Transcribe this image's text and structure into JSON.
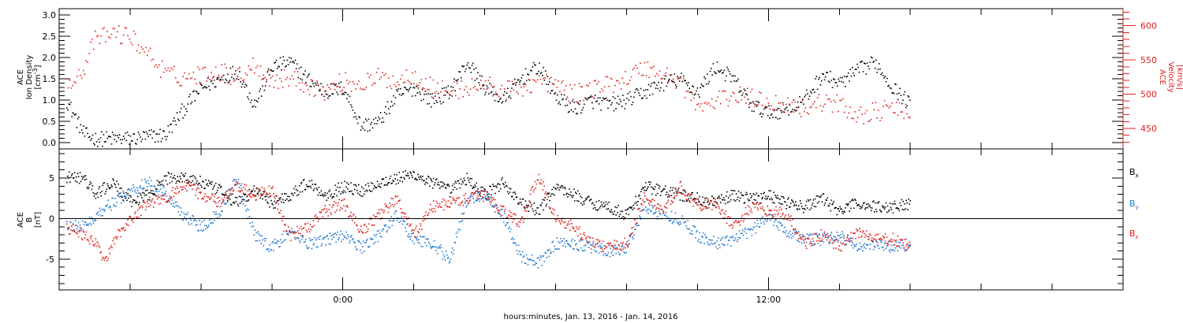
{
  "chart_data": [
    {
      "type": "scatter",
      "panel": "plasma",
      "x_axis": {
        "title": "hours:minutes, Jan. 13, 2016 - Jan. 14, 2016",
        "labeled_ticks": [
          {
            "label": "0:00",
            "hours": 0
          },
          {
            "label": "12:00",
            "hours": 12
          }
        ],
        "range_hours": [
          -8,
          22
        ]
      },
      "left_axis": {
        "label_lines": [
          "ACE",
          "Ion Density"
        ],
        "unit_text": "[cm",
        "unit_sup": "-3",
        "unit_end": "]",
        "ylim": [
          -0.15,
          3.15
        ],
        "tick_labels": [
          "0.0",
          "0.5",
          "1.0",
          "1.5",
          "2.0",
          "2.5",
          "3.0"
        ],
        "color": "#000000"
      },
      "right_axis": {
        "label_lines": [
          "ACE",
          "Velocity",
          "[km/s]"
        ],
        "ylim": [
          420,
          625
        ],
        "tick_labels": [
          "450",
          "500",
          "550",
          "600"
        ],
        "color": "#e0201b"
      },
      "series": [
        {
          "axis": "left",
          "color": "#000000",
          "data_end_hours": 16,
          "anchors": [
            [
              -7.8,
              1.0
            ],
            [
              -7.5,
              0.5
            ],
            [
              -7.3,
              0.2
            ],
            [
              -7.0,
              0.1
            ],
            [
              -6.5,
              0.1
            ],
            [
              -6.0,
              0.1
            ],
            [
              -5.5,
              0.15
            ],
            [
              -5.0,
              0.2
            ],
            [
              -4.5,
              0.8
            ],
            [
              -4.0,
              1.3
            ],
            [
              -3.5,
              1.5
            ],
            [
              -3.0,
              1.7
            ],
            [
              -2.5,
              0.9
            ],
            [
              -2.0,
              1.8
            ],
            [
              -1.5,
              1.9
            ],
            [
              -1.0,
              1.5
            ],
            [
              -0.5,
              1.2
            ],
            [
              0.0,
              1.3
            ],
            [
              0.5,
              0.4
            ],
            [
              1.0,
              0.5
            ],
            [
              1.5,
              1.1
            ],
            [
              2.0,
              1.3
            ],
            [
              2.5,
              1.0
            ],
            [
              3.0,
              1.2
            ],
            [
              3.5,
              1.9
            ],
            [
              4.0,
              1.3
            ],
            [
              4.5,
              1.0
            ],
            [
              5.0,
              1.5
            ],
            [
              5.5,
              1.8
            ],
            [
              6.0,
              1.1
            ],
            [
              6.5,
              0.8
            ],
            [
              7.0,
              1.0
            ],
            [
              7.5,
              0.9
            ],
            [
              8.0,
              1.0
            ],
            [
              8.5,
              1.2
            ],
            [
              9.0,
              1.4
            ],
            [
              9.5,
              1.5
            ],
            [
              10.0,
              1.2
            ],
            [
              10.5,
              1.8
            ],
            [
              11.0,
              1.5
            ],
            [
              11.5,
              0.9
            ],
            [
              12.0,
              0.7
            ],
            [
              12.5,
              0.8
            ],
            [
              13.0,
              1.0
            ],
            [
              13.5,
              1.6
            ],
            [
              14.0,
              1.4
            ],
            [
              14.5,
              1.7
            ],
            [
              15.0,
              1.9
            ],
            [
              15.5,
              1.3
            ],
            [
              16.0,
              0.9
            ]
          ]
        },
        {
          "axis": "right",
          "color": "#e0201b",
          "data_end_hours": 16,
          "anchors": [
            [
              -7.8,
              520
            ],
            [
              -7.4,
              530
            ],
            [
              -7.0,
              580
            ],
            [
              -6.5,
              590
            ],
            [
              -6.0,
              585
            ],
            [
              -5.5,
              560
            ],
            [
              -5.0,
              530
            ],
            [
              -4.5,
              525
            ],
            [
              -4.0,
              530
            ],
            [
              -3.5,
              535
            ],
            [
              -3.0,
              525
            ],
            [
              -2.5,
              545
            ],
            [
              -2.0,
              520
            ],
            [
              -1.5,
              525
            ],
            [
              -1.0,
              515
            ],
            [
              -0.5,
              505
            ],
            [
              0.0,
              520
            ],
            [
              0.5,
              515
            ],
            [
              1.0,
              525
            ],
            [
              1.5,
              520
            ],
            [
              2.0,
              530
            ],
            [
              2.5,
              510
            ],
            [
              3.0,
              505
            ],
            [
              3.5,
              510
            ],
            [
              4.0,
              515
            ],
            [
              4.5,
              505
            ],
            [
              5.0,
              510
            ],
            [
              5.5,
              520
            ],
            [
              6.0,
              515
            ],
            [
              6.5,
              500
            ],
            [
              7.0,
              510
            ],
            [
              7.5,
              515
            ],
            [
              8.0,
              525
            ],
            [
              8.5,
              540
            ],
            [
              9.0,
              530
            ],
            [
              9.5,
              520
            ],
            [
              10.0,
              480
            ],
            [
              10.5,
              490
            ],
            [
              11.0,
              500
            ],
            [
              11.5,
              495
            ],
            [
              12.0,
              490
            ],
            [
              12.5,
              485
            ],
            [
              13.0,
              480
            ],
            [
              13.5,
              490
            ],
            [
              14.0,
              485
            ],
            [
              14.5,
              470
            ],
            [
              15.0,
              475
            ],
            [
              15.5,
              480
            ],
            [
              16.0,
              470
            ]
          ]
        }
      ]
    },
    {
      "type": "scatter",
      "panel": "magnetic-field",
      "left_axis": {
        "label_lines": [
          "ACE",
          "B"
        ],
        "unit_text": "[nT]",
        "ylim": [
          -8.8,
          8.6
        ],
        "tick_labels": [
          "-5",
          "0",
          "5"
        ],
        "color": "#000000"
      },
      "zero_line": true,
      "series": [
        {
          "name": "B",
          "sub": "x",
          "color": "#000000",
          "data_end_hours": 16,
          "anchors": [
            [
              -7.8,
              5.2
            ],
            [
              -7.3,
              5.0
            ],
            [
              -7.0,
              3.0
            ],
            [
              -6.5,
              4.5
            ],
            [
              -6.0,
              2.0
            ],
            [
              -5.5,
              3.0
            ],
            [
              -5.0,
              5.0
            ],
            [
              -4.5,
              5.2
            ],
            [
              -4.0,
              4.5
            ],
            [
              -3.5,
              3.5
            ],
            [
              -3.0,
              2.0
            ],
            [
              -2.5,
              3.5
            ],
            [
              -2.0,
              2.0
            ],
            [
              -1.5,
              3.0
            ],
            [
              -1.0,
              4.5
            ],
            [
              -0.5,
              3.0
            ],
            [
              0.0,
              4.0
            ],
            [
              0.5,
              3.5
            ],
            [
              1.0,
              4.5
            ],
            [
              1.5,
              5.0
            ],
            [
              2.0,
              5.5
            ],
            [
              2.5,
              4.5
            ],
            [
              3.0,
              3.5
            ],
            [
              3.5,
              5.0
            ],
            [
              4.0,
              3.0
            ],
            [
              4.5,
              4.5
            ],
            [
              5.0,
              2.0
            ],
            [
              5.5,
              1.0
            ],
            [
              6.0,
              4.0
            ],
            [
              6.5,
              3.0
            ],
            [
              7.0,
              2.0
            ],
            [
              7.5,
              1.5
            ],
            [
              8.0,
              0.5
            ],
            [
              8.5,
              4.0
            ],
            [
              9.0,
              3.5
            ],
            [
              9.5,
              3.0
            ],
            [
              10.0,
              2.5
            ],
            [
              10.5,
              2.0
            ],
            [
              11.0,
              3.0
            ],
            [
              11.5,
              2.5
            ],
            [
              12.0,
              3.0
            ],
            [
              12.5,
              2.0
            ],
            [
              13.0,
              1.5
            ],
            [
              13.5,
              2.5
            ],
            [
              14.0,
              1.0
            ],
            [
              14.5,
              2.0
            ],
            [
              15.0,
              1.5
            ],
            [
              15.5,
              1.5
            ],
            [
              16.0,
              2.0
            ]
          ]
        },
        {
          "name": "B",
          "sub": "y",
          "color": "#1f78d1",
          "data_end_hours": 16,
          "anchors": [
            [
              -7.8,
              -0.5
            ],
            [
              -7.3,
              -1.0
            ],
            [
              -7.0,
              0.5
            ],
            [
              -6.5,
              2.0
            ],
            [
              -6.0,
              3.5
            ],
            [
              -5.5,
              4.5
            ],
            [
              -5.0,
              3.0
            ],
            [
              -4.5,
              0.5
            ],
            [
              -4.0,
              -1.0
            ],
            [
              -3.5,
              1.0
            ],
            [
              -3.0,
              5.0
            ],
            [
              -2.5,
              -2.0
            ],
            [
              -2.0,
              -3.5
            ],
            [
              -1.5,
              -1.5
            ],
            [
              -1.0,
              -3.0
            ],
            [
              -0.5,
              -2.5
            ],
            [
              0.0,
              -2.0
            ],
            [
              0.5,
              -3.5
            ],
            [
              1.0,
              -2.0
            ],
            [
              1.5,
              0.5
            ],
            [
              2.0,
              -2.5
            ],
            [
              2.5,
              -3.0
            ],
            [
              3.0,
              -5.0
            ],
            [
              3.5,
              2.5
            ],
            [
              4.0,
              3.0
            ],
            [
              4.5,
              0.5
            ],
            [
              5.0,
              -4.5
            ],
            [
              5.5,
              -5.5
            ],
            [
              6.0,
              -3.0
            ],
            [
              6.5,
              -3.0
            ],
            [
              7.0,
              -3.5
            ],
            [
              7.5,
              -4.0
            ],
            [
              8.0,
              -3.5
            ],
            [
              8.5,
              1.5
            ],
            [
              9.0,
              0.5
            ],
            [
              9.5,
              0.0
            ],
            [
              10.0,
              -2.0
            ],
            [
              10.5,
              -3.0
            ],
            [
              11.0,
              -2.5
            ],
            [
              11.5,
              -1.5
            ],
            [
              12.0,
              0.5
            ],
            [
              12.5,
              -1.5
            ],
            [
              13.0,
              -2.5
            ],
            [
              13.5,
              -2.5
            ],
            [
              14.0,
              -2.0
            ],
            [
              14.5,
              -3.5
            ],
            [
              15.0,
              -3.0
            ],
            [
              15.5,
              -3.5
            ],
            [
              16.0,
              -3.0
            ]
          ]
        },
        {
          "name": "B",
          "sub": "z",
          "color": "#e0201b",
          "data_end_hours": 16,
          "anchors": [
            [
              -7.8,
              -1.0
            ],
            [
              -7.3,
              -2.0
            ],
            [
              -7.0,
              -3.0
            ],
            [
              -6.7,
              -5.0
            ],
            [
              -6.3,
              -1.5
            ],
            [
              -6.0,
              0.0
            ],
            [
              -5.5,
              2.0
            ],
            [
              -5.0,
              2.5
            ],
            [
              -4.5,
              4.5
            ],
            [
              -4.0,
              3.0
            ],
            [
              -3.5,
              2.0
            ],
            [
              -3.0,
              4.0
            ],
            [
              -2.5,
              3.0
            ],
            [
              -2.0,
              3.5
            ],
            [
              -1.5,
              -2.0
            ],
            [
              -1.0,
              -1.0
            ],
            [
              -0.5,
              1.0
            ],
            [
              0.0,
              2.0
            ],
            [
              0.5,
              -1.5
            ],
            [
              1.0,
              0.5
            ],
            [
              1.5,
              2.5
            ],
            [
              2.0,
              -2.0
            ],
            [
              2.5,
              1.5
            ],
            [
              3.0,
              2.0
            ],
            [
              3.5,
              2.5
            ],
            [
              4.0,
              3.0
            ],
            [
              4.5,
              1.0
            ],
            [
              5.0,
              -0.5
            ],
            [
              5.5,
              5.5
            ],
            [
              6.0,
              0.0
            ],
            [
              6.5,
              -1.0
            ],
            [
              7.0,
              -3.0
            ],
            [
              7.5,
              -3.5
            ],
            [
              8.0,
              -3.0
            ],
            [
              8.5,
              3.0
            ],
            [
              9.0,
              1.0
            ],
            [
              9.5,
              4.0
            ],
            [
              10.0,
              1.5
            ],
            [
              10.5,
              2.0
            ],
            [
              11.0,
              -1.0
            ],
            [
              11.5,
              1.5
            ],
            [
              12.0,
              1.0
            ],
            [
              12.5,
              0.5
            ],
            [
              13.0,
              -3.0
            ],
            [
              13.5,
              -2.0
            ],
            [
              14.0,
              -3.5
            ],
            [
              14.5,
              -1.5
            ],
            [
              15.0,
              -2.5
            ],
            [
              15.5,
              -2.5
            ],
            [
              16.0,
              -3.5
            ]
          ]
        }
      ]
    }
  ]
}
